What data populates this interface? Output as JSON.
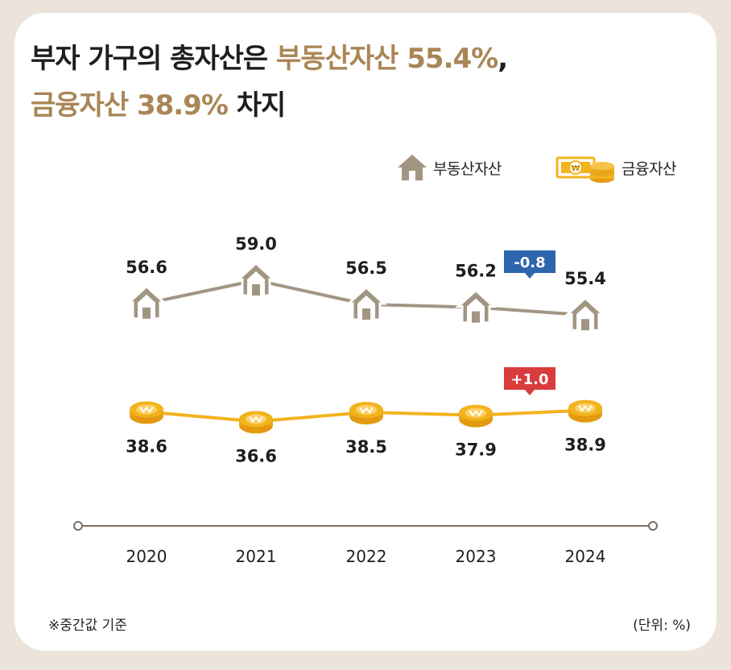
{
  "title": {
    "line1_prefix": "부자 가구의 총자산은 ",
    "line1_highlight": "부동산자산 55.4%",
    "line1_suffix": ",",
    "line2_highlight": "금융자산 38.9%",
    "line2_suffix": " 차지"
  },
  "legend": {
    "real_estate": {
      "label": "부동산자산",
      "icon": "house-icon"
    },
    "financial": {
      "label": "금융자산",
      "icon": "money-coins-icon"
    }
  },
  "footnote": "※중간값 기준",
  "unit": "(단위: %)",
  "colors": {
    "real_estate": "#a29584",
    "financial": "#f2b31d",
    "highlight": "#a98656",
    "badge_negative": "#2e66ad",
    "badge_positive": "#d93c3c",
    "axis": "#7d6e63",
    "background": "#ece4da"
  },
  "chart_data": {
    "type": "line",
    "categories": [
      "2020",
      "2021",
      "2022",
      "2023",
      "2024"
    ],
    "series": [
      {
        "name": "부동산자산",
        "values": [
          56.6,
          59.0,
          56.5,
          56.2,
          55.4
        ],
        "labels": [
          "56.6",
          "59.0",
          "56.5",
          "56.2",
          "55.4"
        ],
        "marker": "house-icon"
      },
      {
        "name": "금융자산",
        "values": [
          38.6,
          36.6,
          38.5,
          37.9,
          38.9
        ],
        "labels": [
          "38.6",
          "36.6",
          "38.5",
          "37.9",
          "38.9"
        ],
        "marker": "coin-icon"
      }
    ],
    "annotations": [
      {
        "series": "부동산자산",
        "category": "2024",
        "text": "-0.8",
        "color": "#2e66ad"
      },
      {
        "series": "금융자산",
        "category": "2024",
        "text": "+1.0",
        "color": "#d93c3c"
      }
    ],
    "xlabel": "",
    "ylabel": "",
    "grid": false,
    "legend_position": "top-right"
  }
}
